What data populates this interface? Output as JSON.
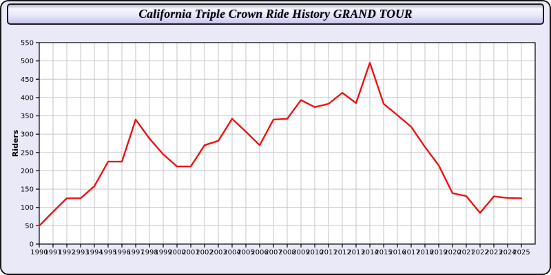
{
  "header": {
    "title": "California Triple Crown Ride History GRAND TOUR"
  },
  "chart_data": {
    "type": "line",
    "title": "California Triple Crown Ride History GRAND TOUR",
    "xlabel": "",
    "ylabel": "Riders",
    "x": [
      1990,
      1991,
      1992,
      1993,
      1994,
      1995,
      1996,
      1997,
      1998,
      1999,
      2000,
      2001,
      2002,
      2003,
      2004,
      2005,
      2006,
      2007,
      2008,
      2009,
      2010,
      2011,
      2012,
      2013,
      2014,
      2015,
      2016,
      2017,
      2018,
      2019,
      2020,
      2021,
      2022,
      2023,
      2024,
      2025
    ],
    "series": [
      {
        "name": "Riders",
        "values": [
          50,
          88,
          125,
          125,
          158,
          225,
          225,
          340,
          288,
          245,
          212,
          212,
          270,
          282,
          342,
          307,
          270,
          340,
          342,
          393,
          374,
          383,
          413,
          385,
          495,
          383,
          352,
          320,
          265,
          215,
          139,
          131,
          85,
          130,
          126,
          125
        ]
      }
    ],
    "ylim": [
      0,
      550
    ],
    "ytick_step": 50,
    "grid": true,
    "legend_position": "none",
    "line_color": "#ee1111",
    "grid_color": "#c6c6c6",
    "plot_background": "#ffffff",
    "axis_color": "#000000"
  },
  "colors": {
    "page_background": "#e9e9f8",
    "border": "#151515",
    "header_gradient_top": "#b7b7cb",
    "header_gradient_bottom": "#c6c6ec"
  }
}
